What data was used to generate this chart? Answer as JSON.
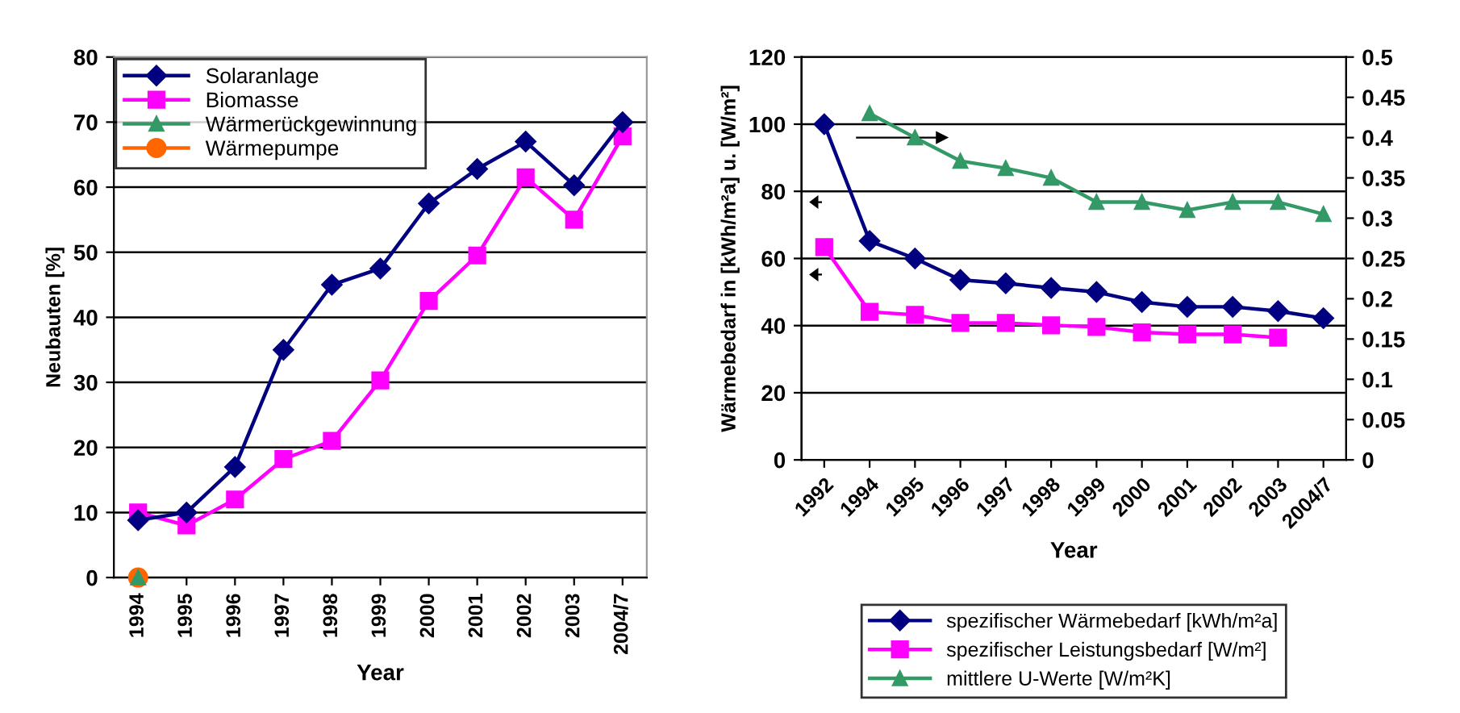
{
  "chart_data": [
    {
      "type": "line",
      "xlabel": "Year",
      "ylabel": "Neubauten [%]",
      "categories": [
        "1994",
        "1995",
        "1996",
        "1997",
        "1998",
        "1999",
        "2000",
        "2001",
        "2002",
        "2003",
        "2004/7"
      ],
      "ylim": [
        0,
        80
      ],
      "yticks": [
        0,
        10,
        20,
        30,
        40,
        50,
        60,
        70,
        80
      ],
      "grid": "y",
      "legend": "top left",
      "series": [
        {
          "name": "Solaranlage",
          "color": "#000080",
          "marker": "diamond",
          "values": [
            8.8,
            10,
            17,
            35,
            45,
            47.5,
            57.5,
            62.8,
            67,
            60.3,
            70
          ]
        },
        {
          "name": "Biomasse",
          "color": "#ff00ff",
          "marker": "square",
          "values": [
            10,
            8,
            12,
            18.2,
            21,
            30.3,
            42.5,
            49.5,
            61.5,
            55,
            67.8
          ]
        },
        {
          "name": "Wärmerückgewinnung",
          "color": "#339966",
          "marker": "triangle",
          "values": [
            0,
            null,
            null,
            null,
            null,
            null,
            null,
            null,
            null,
            null,
            null
          ]
        },
        {
          "name": "Wärmepumpe",
          "color": "#ff6600",
          "marker": "circle",
          "values": [
            0,
            null,
            null,
            null,
            null,
            null,
            null,
            null,
            null,
            null,
            null
          ]
        }
      ]
    },
    {
      "type": "line",
      "xlabel": "Year",
      "ylabel": "Wärmebedarf in [kWh/m²a] u. [W/m²]",
      "categories": [
        "1992",
        "1994",
        "1995",
        "1996",
        "1997",
        "1998",
        "1999",
        "2000",
        "2001",
        "2002",
        "2003",
        "2004/7"
      ],
      "ylim": [
        0,
        120
      ],
      "yticks": [
        0,
        20,
        40,
        60,
        80,
        100,
        120
      ],
      "y2lim": [
        0,
        0.5
      ],
      "y2ticks": [
        0,
        {
          "value": 0.05,
          "label": "0.05"
        },
        {
          "value": 0.1,
          "label": "0.1"
        },
        {
          "value": 0.15,
          "label": "0.15"
        },
        {
          "value": 0.2,
          "label": "0.2"
        },
        {
          "value": 0.25,
          "label": "0.25"
        },
        {
          "value": 0.3,
          "label": "0.3"
        },
        {
          "value": 0.35,
          "label": "0.35"
        },
        {
          "value": 0.4,
          "label": "0.4"
        },
        {
          "value": 0.45,
          "label": "0.45"
        },
        {
          "value": 0.5,
          "label": "0.5"
        }
      ],
      "grid": "y",
      "legend": "bottom",
      "series": [
        {
          "name": "spezifischer Wärmebedarf [kWh/m²a]",
          "color": "#000080",
          "marker": "diamond",
          "values": [
            100,
            65.2,
            60,
            53.6,
            52.6,
            51.2,
            50,
            47,
            45.6,
            45.6,
            44.3,
            42.2
          ]
        },
        {
          "name": "spezifischer Leistungsbedarf [W/m²]",
          "color": "#ff00ff",
          "marker": "square",
          "values": [
            63.4,
            44.1,
            43.2,
            40.8,
            40.8,
            40.1,
            39.6,
            38,
            37.4,
            37.4,
            36.4,
            null
          ]
        },
        {
          "name": "mittlere U-Werte [W/m²K]",
          "color": "#339966",
          "marker": "triangle",
          "axis": "y2",
          "values": [
            null,
            0.43,
            0.4,
            0.371,
            0.362,
            0.35,
            0.32,
            0.32,
            0.31,
            0.32,
            0.32,
            0.305
          ]
        }
      ]
    }
  ]
}
